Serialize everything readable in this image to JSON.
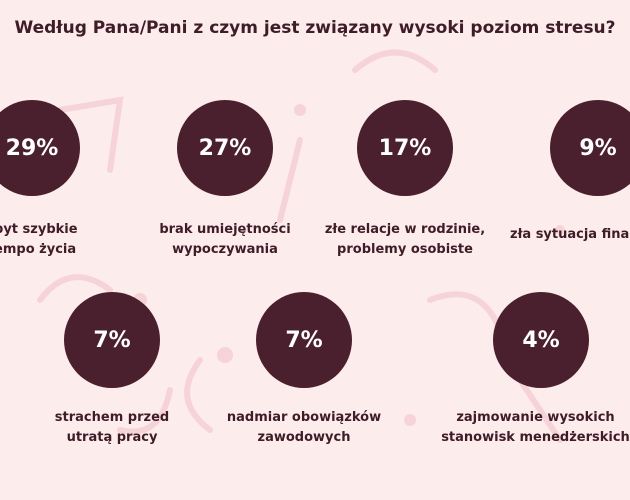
{
  "title": "Według Pana/Pani z czym jest związany wysoki poziom stresu?",
  "chart_data": {
    "type": "bar",
    "title": "Według Pana/Pani z czym jest związany wysoki poziom stresu?",
    "categories": [
      "zbyt szybkie tempo życia",
      "brak umiejętności wypoczywania",
      "złe relacje w rodzinie, problemy osobiste",
      "zła sytuacja finansowa",
      "strachem przed utratą pracy",
      "nadmiar obowiązków zawodowych",
      "zajmowanie wysokich stanowisk menedżerskich"
    ],
    "values": [
      29,
      27,
      17,
      9,
      7,
      7,
      4
    ],
    "unit": "%"
  },
  "items": [
    {
      "value": "29%",
      "label_lines": [
        "zbyt szybkie",
        "tempo życia"
      ]
    },
    {
      "value": "27%",
      "label_lines": [
        "brak umiejętności",
        "wypoczywania"
      ]
    },
    {
      "value": "17%",
      "label_lines": [
        "złe relacje w rodzinie,",
        "problemy osobiste"
      ]
    },
    {
      "value": "9%",
      "label_lines": [
        "zła sytuacja finansowa"
      ]
    },
    {
      "value": "7%",
      "label_lines": [
        "strachem przed",
        "utratą pracy"
      ]
    },
    {
      "value": "7%",
      "label_lines": [
        "nadmiar obowiązków",
        "zawodowych"
      ]
    },
    {
      "value": "4%",
      "label_lines": [
        "zajmowanie wysokich",
        "stanowisk menedżerskich"
      ]
    }
  ],
  "colors": {
    "background": "#fdecec",
    "circle": "#4a1f2e",
    "text": "#3e1c28",
    "decor": "#f6d3d6"
  }
}
